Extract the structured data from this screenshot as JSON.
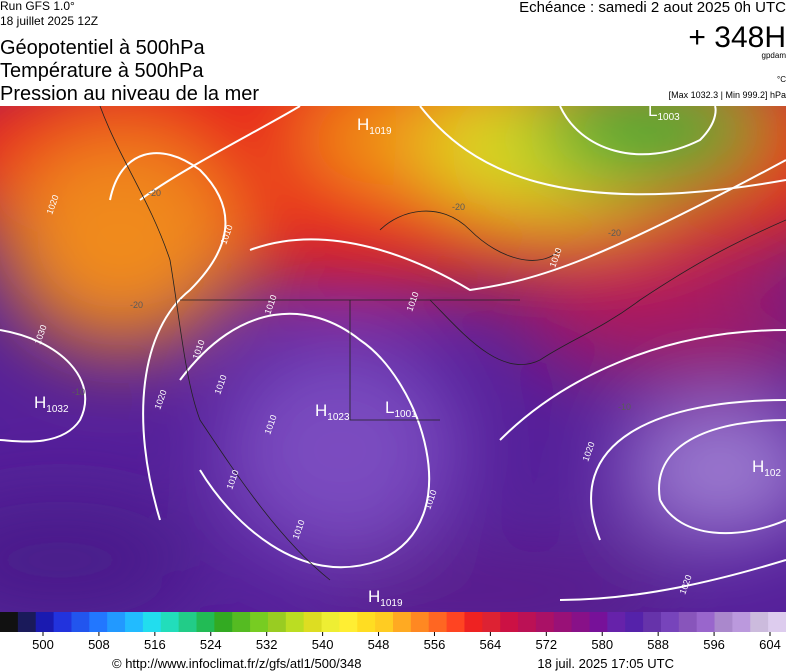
{
  "header": {
    "run": "Run GFS 1.0°",
    "run_date": "18 juillet 2025 12Z",
    "title_lines": [
      "Géopotentiel à 500hPa",
      "Température à 500hPa",
      "Pression au niveau de la mer"
    ],
    "valid": "Echéance : samedi 2 aout 2025 0h UTC",
    "lead": "+ 348H",
    "unit_geo": "gpdam",
    "unit_temp": "°C",
    "pressure_range": "[Max 1032.3 | Min 999.2] hPa"
  },
  "pressure_centers": [
    {
      "letter": "H",
      "value": "1019"
    },
    {
      "letter": "L",
      "value": "1003"
    },
    {
      "letter": "H",
      "value": "1032"
    },
    {
      "letter": "H",
      "value": "1023"
    },
    {
      "letter": "L",
      "value": "1001"
    },
    {
      "letter": "H",
      "value": "102"
    },
    {
      "letter": "H",
      "value": "1019"
    }
  ],
  "isobar_labels": [
    "1020",
    "1010",
    "1030",
    "1020",
    "1010",
    "1010",
    "1010",
    "1010",
    "1010",
    "1010",
    "1020",
    "1010",
    "1020",
    "1010",
    "1010"
  ],
  "temperature_labels": [
    "-20",
    "-20",
    "-20",
    "-20",
    "-10",
    "-10"
  ],
  "colorbar": {
    "ticks": [
      500,
      508,
      516,
      524,
      532,
      540,
      548,
      556,
      564,
      572,
      580,
      588,
      596,
      604
    ]
  },
  "footer": {
    "source": "© http://www.infoclimat.fr/z/gfs/atl1/500/348",
    "timestamp": "18 juil. 2025 17:05 UTC"
  }
}
